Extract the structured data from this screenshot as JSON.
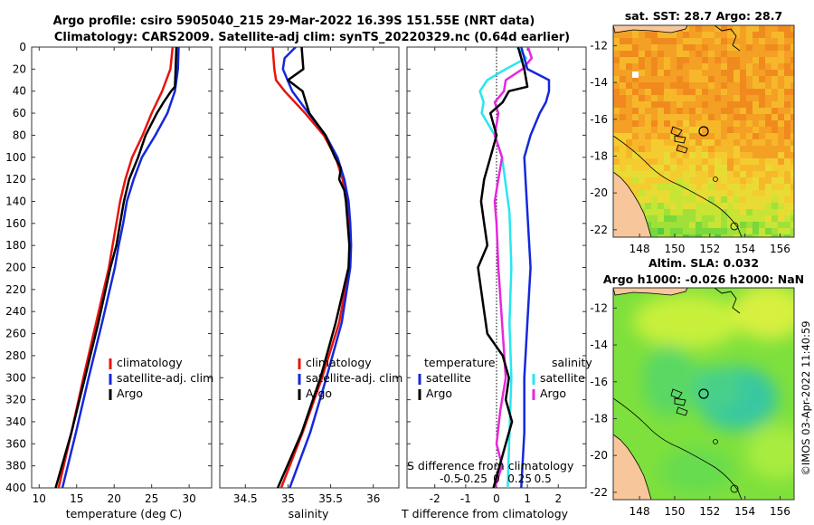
{
  "title_line1": "Argo profile: csiro 5905040_215 29-Mar-2022 16.39S 151.55E (NRT data)",
  "title_line2": "Climatology: CARS2009. Satellite-adj clim: synTS_20220329.nc (0.64d earlier)",
  "timestamp": "©IMOS 03-Apr-2022 11:40:59",
  "colors": {
    "climatology": "#e8140c",
    "satellite": "#1428dc",
    "argo": "#000000",
    "salinity_sat": "#28e6f0",
    "salinity_argo": "#e628dc"
  },
  "chart_data": [
    {
      "type": "line",
      "xlabel": "temperature (deg C)",
      "ylabel": "",
      "xlim": [
        9,
        33
      ],
      "ylim": [
        400,
        0
      ],
      "xticks": [
        10,
        15,
        20,
        25,
        30
      ],
      "yticks": [
        0,
        20,
        40,
        60,
        80,
        100,
        120,
        140,
        160,
        180,
        200,
        220,
        240,
        260,
        280,
        300,
        320,
        340,
        360,
        380,
        400
      ],
      "legend": [
        "climatology",
        "satellite-adj. clim",
        "Argo"
      ],
      "series": [
        {
          "name": "climatology",
          "depth": [
            0,
            20,
            40,
            60,
            80,
            100,
            120,
            140,
            160,
            180,
            200,
            250,
            300,
            350,
            400
          ],
          "values": [
            27.8,
            27.5,
            26.4,
            25.0,
            23.8,
            22.4,
            21.5,
            20.8,
            20.3,
            19.8,
            19.3,
            17.6,
            15.9,
            14.3,
            12.6
          ]
        },
        {
          "name": "satellite-adj. clim",
          "depth": [
            0,
            20,
            40,
            60,
            80,
            100,
            120,
            140,
            160,
            180,
            200,
            250,
            300,
            350,
            400
          ],
          "values": [
            28.6,
            28.5,
            28.1,
            27.1,
            25.5,
            23.7,
            22.6,
            21.7,
            21.2,
            20.6,
            20.1,
            18.4,
            16.6,
            14.9,
            13.1
          ]
        },
        {
          "name": "Argo",
          "depth": [
            0,
            20,
            36,
            40,
            50,
            60,
            80,
            100,
            120,
            140,
            160,
            180,
            200,
            250,
            300,
            350,
            400
          ],
          "values": [
            28.3,
            28.2,
            28.1,
            27.6,
            26.6,
            25.7,
            24.2,
            23.2,
            22.0,
            21.3,
            20.8,
            20.3,
            19.5,
            17.9,
            16.1,
            14.3,
            12.2
          ]
        }
      ]
    },
    {
      "type": "line",
      "xlabel": "salinity",
      "xlim": [
        34.2,
        36.3
      ],
      "ylim": [
        400,
        0
      ],
      "xticks": [
        34.5,
        35,
        35.5,
        36
      ],
      "legend": [
        "climatology",
        "satellite-adj. clim",
        "Argo"
      ],
      "series": [
        {
          "name": "climatology",
          "depth": [
            0,
            20,
            30,
            40,
            60,
            80,
            100,
            120,
            140,
            160,
            180,
            200,
            250,
            300,
            350,
            400
          ],
          "values": [
            34.82,
            34.84,
            34.86,
            34.96,
            35.2,
            35.42,
            35.56,
            35.64,
            35.69,
            35.72,
            35.73,
            35.72,
            35.6,
            35.4,
            35.17,
            34.92
          ]
        },
        {
          "name": "satellite-adj. clim",
          "depth": [
            0,
            10,
            20,
            40,
            60,
            80,
            100,
            120,
            140,
            160,
            180,
            200,
            250,
            300,
            350,
            400
          ],
          "values": [
            35.09,
            34.96,
            34.94,
            35.05,
            35.24,
            35.44,
            35.58,
            35.66,
            35.71,
            35.73,
            35.74,
            35.73,
            35.63,
            35.45,
            35.26,
            35.02
          ]
        },
        {
          "name": "Argo",
          "depth": [
            0,
            20,
            30,
            40,
            60,
            80,
            100,
            110,
            120,
            130,
            140,
            160,
            180,
            200,
            250,
            300,
            350,
            400
          ],
          "values": [
            35.16,
            35.18,
            35.0,
            35.17,
            35.25,
            35.44,
            35.55,
            35.62,
            35.6,
            35.66,
            35.68,
            35.7,
            35.72,
            35.71,
            35.56,
            35.38,
            35.16,
            34.88
          ]
        }
      ]
    },
    {
      "type": "line",
      "xlabel": "T difference from climatology",
      "secondary_xlabel": "S difference from climatology",
      "xlim": [
        -2.9,
        2.9
      ],
      "ylim": [
        400,
        0
      ],
      "xticks": [
        -2,
        -1,
        0,
        1,
        2
      ],
      "secondary_xticks": [
        "-0.5",
        "-0.25",
        "0",
        "0.25",
        "0.5"
      ],
      "legend_left_title": "temperature",
      "legend_right_title": "salinity",
      "legend": [
        "satellite",
        "Argo",
        "satellite",
        "Argo"
      ],
      "series": [
        {
          "name": "temperature satellite",
          "depth": [
            0,
            20,
            30,
            40,
            50,
            60,
            80,
            100,
            150,
            200,
            250,
            300,
            350,
            400
          ],
          "values": [
            0.8,
            1.0,
            1.7,
            1.7,
            1.6,
            1.4,
            1.1,
            0.9,
            1.0,
            1.1,
            1.0,
            0.9,
            0.9,
            0.8
          ]
        },
        {
          "name": "temperature Argo",
          "depth": [
            0,
            20,
            36,
            40,
            50,
            60,
            80,
            100,
            120,
            140,
            160,
            180,
            200,
            220,
            240,
            260,
            280,
            300,
            320,
            340,
            360,
            380,
            400
          ],
          "values": [
            0.7,
            0.9,
            1.0,
            0.4,
            0.2,
            -0.2,
            0.0,
            -0.2,
            -0.4,
            -0.5,
            -0.4,
            -0.3,
            -0.6,
            -0.5,
            -0.4,
            -0.3,
            0.2,
            0.4,
            0.3,
            0.5,
            0.3,
            0.1,
            -0.1
          ]
        },
        {
          "name": "salinity satellite",
          "depth": [
            0,
            10,
            20,
            30,
            40,
            50,
            60,
            80,
            100,
            150,
            200,
            250,
            300,
            350,
            400
          ],
          "values": [
            0.22,
            0.32,
            0.1,
            -0.1,
            -0.18,
            -0.14,
            -0.16,
            -0.02,
            0.06,
            0.14,
            0.16,
            0.14,
            0.16,
            0.14,
            0.12
          ]
        },
        {
          "name": "salinity Argo",
          "depth": [
            0,
            10,
            20,
            30,
            40,
            50,
            60,
            80,
            100,
            120,
            140,
            160,
            200,
            250,
            300,
            330,
            360,
            380,
            400
          ],
          "values": [
            0.34,
            0.38,
            0.28,
            0.1,
            0.08,
            -0.02,
            0.02,
            -0.02,
            0.06,
            0.02,
            -0.02,
            0.0,
            0.02,
            0.06,
            0.1,
            0.04,
            0.0,
            0.06,
            -0.02
          ]
        }
      ]
    },
    {
      "type": "heatmap",
      "title": "sat. SST: 28.7 Argo: 28.7",
      "xticks": [
        "148",
        "150",
        "152",
        "154",
        "156"
      ],
      "yticks": [
        "-12",
        "-14",
        "-16",
        "-18",
        "-20",
        "-22"
      ],
      "xlim": [
        146.5,
        156.8
      ],
      "ylim": [
        -22.4,
        -10.9
      ]
    },
    {
      "type": "heatmap",
      "title_line1": "Altim. SLA: 0.032",
      "title_line2": "Argo h1000: -0.026 h2000: NaN",
      "xticks": [
        "148",
        "150",
        "152",
        "154",
        "156"
      ],
      "yticks": [
        "-12",
        "-14",
        "-16",
        "-18",
        "-20",
        "-22"
      ],
      "xlim": [
        146.5,
        156.8
      ],
      "ylim": [
        -22.4,
        -10.9
      ]
    }
  ]
}
